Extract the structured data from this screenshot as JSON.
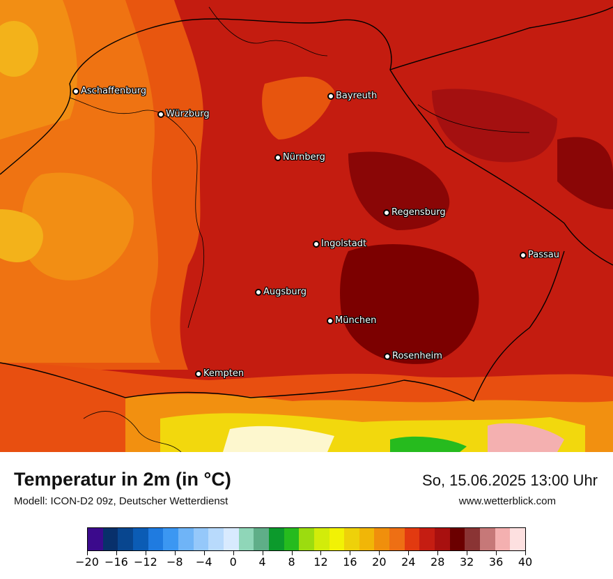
{
  "title": "Temperatur in 2m (in °C)",
  "subtitle": "Modell: ICON-D2 09z, Deutscher Wetterdienst",
  "datetime": "So, 15.06.2025 13:00 Uhr",
  "website": "www.wetterblick.com",
  "cities": [
    {
      "name": "Aschaffenburg"
    },
    {
      "name": "Würzburg"
    },
    {
      "name": "Bayreuth"
    },
    {
      "name": "Nürnberg"
    },
    {
      "name": "Regensburg"
    },
    {
      "name": "Ingolstadt"
    },
    {
      "name": "Passau"
    },
    {
      "name": "Augsburg"
    },
    {
      "name": "München"
    },
    {
      "name": "Rosenheim"
    },
    {
      "name": "Kempten"
    }
  ],
  "legend": {
    "colors": [
      "#3b0a8c",
      "#08306b",
      "#08468f",
      "#0b5cb5",
      "#1f7be0",
      "#3b97f2",
      "#6fb4f7",
      "#95c8fa",
      "#b8dafc",
      "#d8eafe",
      "#8fd6b8",
      "#5fae88",
      "#0c9a2c",
      "#26bb1e",
      "#9cdc0f",
      "#d2ec0a",
      "#f2f205",
      "#eed10a",
      "#f1b607",
      "#f08f0c",
      "#ee6f14",
      "#e23a10",
      "#c51d12",
      "#a8100f",
      "#6b0000",
      "#8a3434",
      "#c67878",
      "#f4b0b0",
      "#fde0e0"
    ],
    "ticks": [
      "−20",
      "−16",
      "−12",
      "−8",
      "−4",
      "0",
      "4",
      "8",
      "12",
      "16",
      "20",
      "24",
      "28",
      "32",
      "36",
      "40"
    ],
    "min": -20,
    "max": 40
  }
}
